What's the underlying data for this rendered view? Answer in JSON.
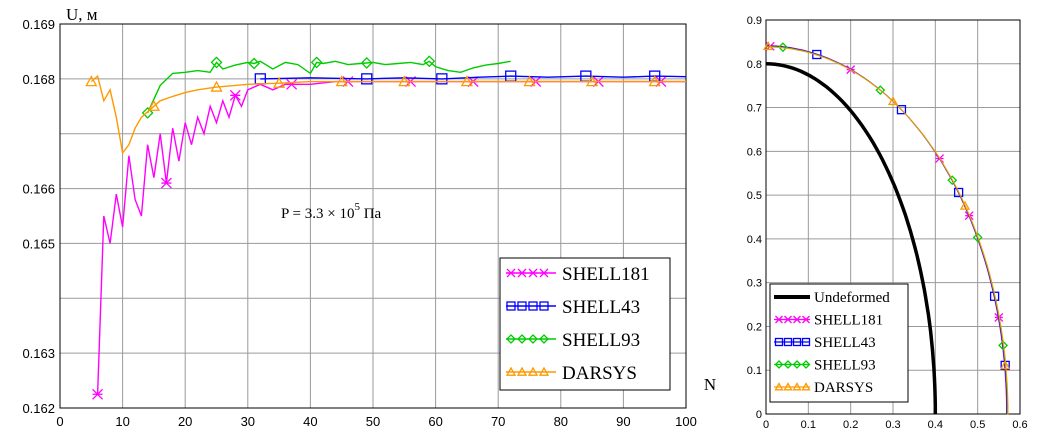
{
  "chart_data": [
    {
      "type": "line",
      "ylabel": "U, м",
      "xlabel": "N",
      "annotation": {
        "base": "P = 3.3 × 10",
        "exp": "5",
        "unit": " Па"
      },
      "xlim": [
        0,
        100
      ],
      "ylim": [
        0.162,
        0.169
      ],
      "xticks": [
        "0",
        "10",
        "20",
        "30",
        "40",
        "50",
        "60",
        "70",
        "80",
        "90",
        "100"
      ],
      "yticks": [
        "0.162",
        "0.163",
        "0.165",
        "0.166",
        "0.168",
        "0.169"
      ],
      "ytick_values": [
        0.162,
        0.163,
        0.165,
        0.166,
        0.168,
        0.169
      ],
      "grid": true,
      "legend_position": "bottom-right",
      "series": [
        {
          "name": "SHELL181",
          "color": "#ff00ff",
          "marker": "x",
          "x": [
            6,
            7,
            8,
            9,
            10,
            11,
            12,
            13,
            14,
            15,
            16,
            17,
            18,
            19,
            20,
            21,
            22,
            23,
            24,
            25,
            26,
            27,
            28,
            29,
            30,
            32,
            34,
            36,
            38,
            40,
            44,
            48,
            52,
            56,
            60,
            64,
            68,
            72,
            76,
            80,
            84,
            88,
            92,
            96,
            100
          ],
          "y": [
            0.16225,
            0.1655,
            0.165,
            0.1659,
            0.1653,
            0.1666,
            0.1658,
            0.1655,
            0.1668,
            0.1662,
            0.167,
            0.1661,
            0.1671,
            0.1665,
            0.1672,
            0.1668,
            0.1673,
            0.167,
            0.1675,
            0.1672,
            0.1676,
            0.1673,
            0.1677,
            0.1675,
            0.1678,
            0.1679,
            0.1678,
            0.1679,
            0.1679,
            0.1679,
            0.16795,
            0.16795,
            0.16795,
            0.16795,
            0.16795,
            0.16795,
            0.16795,
            0.16795,
            0.16795,
            0.16795,
            0.16795,
            0.16795,
            0.16795,
            0.16795,
            0.16795
          ],
          "marker_x": [
            6,
            17,
            28,
            37,
            46,
            56,
            66,
            76,
            86,
            96
          ]
        },
        {
          "name": "SHELL43",
          "color": "#0000ff",
          "marker": "square",
          "x": [
            32,
            40,
            49,
            55,
            61,
            67,
            72,
            78,
            84,
            90,
            95,
            100
          ],
          "y": [
            0.168,
            0.16802,
            0.168,
            0.16802,
            0.168,
            0.16803,
            0.16805,
            0.16803,
            0.16805,
            0.16803,
            0.16805,
            0.16804
          ],
          "marker_x": [
            32,
            49,
            61,
            72,
            84,
            95
          ]
        },
        {
          "name": "SHELL93",
          "color": "#00cc00",
          "marker": "diamond",
          "x": [
            14,
            16,
            18,
            20,
            22,
            24,
            25,
            26,
            28,
            30,
            31,
            32,
            34,
            36,
            38,
            40,
            41,
            42,
            44,
            46,
            48,
            50,
            52,
            54,
            56,
            58,
            59,
            60,
            62,
            64,
            66,
            68,
            70,
            72
          ],
          "y": [
            0.16738,
            0.16788,
            0.1681,
            0.16812,
            0.16815,
            0.16812,
            0.1683,
            0.16818,
            0.16825,
            0.1683,
            0.16828,
            0.16832,
            0.16818,
            0.1683,
            0.16826,
            0.1681,
            0.1683,
            0.16828,
            0.16832,
            0.16826,
            0.16828,
            0.1683,
            0.16826,
            0.16828,
            0.1683,
            0.16826,
            0.16832,
            0.16822,
            0.16815,
            0.16812,
            0.1682,
            0.16825,
            0.16828,
            0.16832
          ],
          "marker_x": [
            14,
            25,
            31,
            41,
            49,
            59
          ]
        },
        {
          "name": "DARSYS",
          "color": "#ff9900",
          "marker": "triangle",
          "x": [
            5,
            6,
            7,
            8,
            9,
            10,
            11,
            12,
            13,
            14,
            15,
            16,
            18,
            20,
            22,
            25,
            28,
            30,
            35,
            40,
            45,
            50,
            55,
            60,
            65,
            70,
            75,
            80,
            85,
            90,
            95,
            100
          ],
          "y": [
            0.16795,
            0.16805,
            0.1676,
            0.1678,
            0.1673,
            0.16665,
            0.1668,
            0.1671,
            0.1673,
            0.1674,
            0.1675,
            0.1676,
            0.16768,
            0.16775,
            0.1678,
            0.16785,
            0.16788,
            0.1679,
            0.16792,
            0.16795,
            0.16795,
            0.16795,
            0.16795,
            0.16795,
            0.16795,
            0.16795,
            0.16795,
            0.16795,
            0.16795,
            0.16795,
            0.16795,
            0.16795
          ],
          "marker_x": [
            5,
            15,
            25,
            35,
            45,
            55,
            65,
            75,
            85,
            95
          ]
        }
      ]
    },
    {
      "type": "line",
      "xlim": [
        0,
        0.6
      ],
      "ylim": [
        0,
        0.9
      ],
      "xticks": [
        "0",
        "0.1",
        "0.2",
        "0.3",
        "0.4",
        "0.5",
        "0.6"
      ],
      "yticks": [
        "0",
        "0.1",
        "0.2",
        "0.3",
        "0.4",
        "0.5",
        "0.6",
        "0.7",
        "0.8",
        "0.9"
      ],
      "grid": true,
      "legend_position": "bottom-left",
      "undeformed": {
        "name": "Undeformed",
        "color": "#000000",
        "a": 0.4,
        "b": 0.8
      },
      "deformed": {
        "a": 0.57,
        "b": 0.84
      },
      "series": [
        {
          "name": "SHELL181",
          "color": "#ff00ff",
          "marker": "x",
          "marker_x": [
            0.01,
            0.2,
            0.41,
            0.48,
            0.55
          ]
        },
        {
          "name": "SHELL43",
          "color": "#0000ff",
          "marker": "square",
          "marker_x": [
            0.12,
            0.32,
            0.455,
            0.54,
            0.565
          ]
        },
        {
          "name": "SHELL93",
          "color": "#00cc00",
          "marker": "diamond",
          "marker_x": [
            0.04,
            0.27,
            0.44,
            0.5,
            0.56
          ]
        },
        {
          "name": "DARSYS",
          "color": "#ff9900",
          "marker": "triangle",
          "marker_x": [
            0.005,
            0.3,
            0.47,
            0.565
          ]
        }
      ]
    }
  ]
}
